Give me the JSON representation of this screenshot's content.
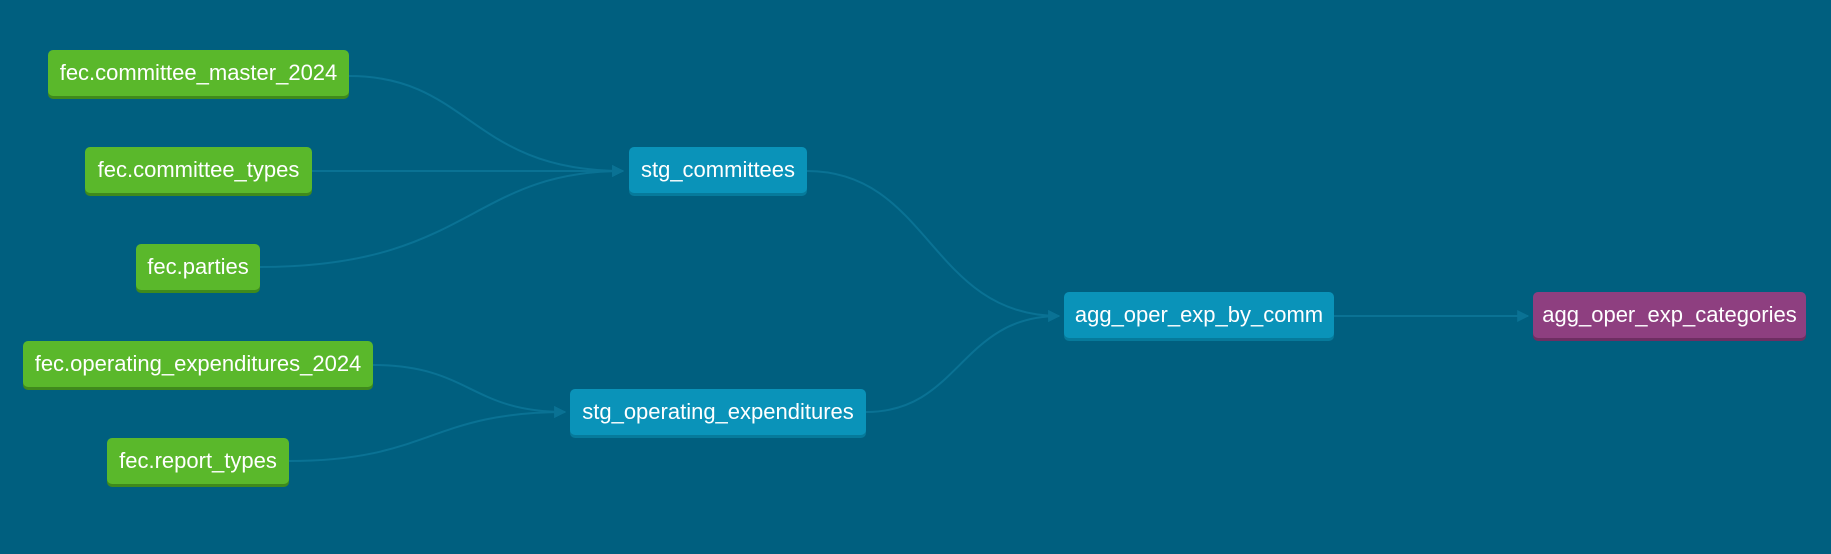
{
  "colors": {
    "background": "#005f7f",
    "source_node": "#5ab82b",
    "model_node": "#0a93b9",
    "final_node": "#8e3f80",
    "edge": "#0a7294"
  },
  "nodes": {
    "committee_master": "fec.committee_master_2024",
    "committee_types": "fec.committee_types",
    "parties": "fec.parties",
    "operating_expenditures": "fec.operating_expenditures_2024",
    "report_types": "fec.report_types",
    "stg_committees": "stg_committees",
    "stg_operating_expenditures": "stg_operating_expenditures",
    "agg_oper_exp_by_comm": "agg_oper_exp_by_comm",
    "agg_oper_exp_categories": "agg_oper_exp_categories"
  },
  "edges": [
    {
      "from": "fec.committee_master_2024",
      "to": "stg_committees"
    },
    {
      "from": "fec.committee_types",
      "to": "stg_committees"
    },
    {
      "from": "fec.parties",
      "to": "stg_committees"
    },
    {
      "from": "fec.operating_expenditures_2024",
      "to": "stg_operating_expenditures"
    },
    {
      "from": "fec.report_types",
      "to": "stg_operating_expenditures"
    },
    {
      "from": "stg_committees",
      "to": "agg_oper_exp_by_comm"
    },
    {
      "from": "stg_operating_expenditures",
      "to": "agg_oper_exp_by_comm"
    },
    {
      "from": "agg_oper_exp_by_comm",
      "to": "agg_oper_exp_categories"
    }
  ]
}
